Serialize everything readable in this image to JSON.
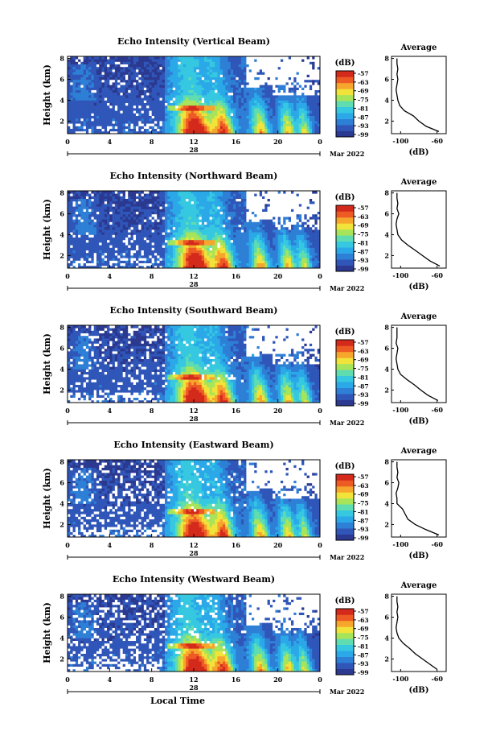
{
  "common": {
    "time_ticks": [
      "0",
      "4",
      "8",
      "12",
      "16",
      "20",
      "0"
    ],
    "date_day": "28",
    "date_month": "Mar 2022",
    "height_ticks": [
      "2",
      "4",
      "6",
      "8"
    ],
    "ylabel": "Height (km)",
    "xlabel": "Local Time",
    "cb_unit": "(dB)",
    "cb_ticks": [
      "-57",
      "-63",
      "-69",
      "-75",
      "-81",
      "-87",
      "-93",
      "-99"
    ],
    "avg_title": "Average",
    "avg_xticks": [
      "-100",
      "-60"
    ],
    "avg_xlabel": "(dB)",
    "avg_yticks": [
      "2",
      "4",
      "6",
      "8"
    ]
  },
  "colors": {
    "scale": [
      "#2b3990",
      "#2f56b8",
      "#2e7fd6",
      "#2aa8e8",
      "#36c8e0",
      "#5fdcb0",
      "#a8e45a",
      "#f2e33a",
      "#f6a52d",
      "#ee5a24",
      "#d42a1c"
    ],
    "background_gap": "#ffffff"
  },
  "chart_data": [
    {
      "type": "heatmap",
      "title": "Echo Intensity (Vertical Beam)",
      "x_range_hours": [
        0,
        24
      ],
      "y_range_km": [
        0.8,
        8.2
      ],
      "z_range_db": [
        -99,
        -57
      ],
      "average_profile": {
        "x_range_db": [
          -110,
          -50
        ],
        "height_km": [
          1,
          1.5,
          2,
          2.5,
          3,
          3.5,
          4,
          4.5,
          5,
          5.5,
          6,
          6.5,
          7,
          7.5,
          8
        ],
        "db": [
          -58,
          -72,
          -80,
          -86,
          -96,
          -101,
          -103,
          -104,
          -105,
          -104,
          -103,
          -104,
          -103,
          -104,
          -104
        ]
      }
    },
    {
      "type": "heatmap",
      "title": "Echo Intensity (Northward Beam)",
      "x_range_hours": [
        0,
        24
      ],
      "y_range_km": [
        0.8,
        8.2
      ],
      "z_range_db": [
        -99,
        -57
      ],
      "average_profile": {
        "x_range_db": [
          -110,
          -50
        ],
        "height_km": [
          1,
          1.5,
          2,
          2.5,
          3,
          3.5,
          4,
          4.5,
          5,
          5.5,
          6,
          6.5,
          7,
          7.5,
          8
        ],
        "db": [
          -57,
          -68,
          -76,
          -84,
          -92,
          -99,
          -103,
          -104,
          -105,
          -104,
          -102,
          -104,
          -103,
          -104,
          -104
        ]
      }
    },
    {
      "type": "heatmap",
      "title": "Echo Intensity (Southward Beam)",
      "x_range_hours": [
        0,
        24
      ],
      "y_range_km": [
        0.8,
        8.2
      ],
      "z_range_db": [
        -99,
        -57
      ],
      "average_profile": {
        "x_range_db": [
          -110,
          -50
        ],
        "height_km": [
          1,
          1.5,
          2,
          2.5,
          3,
          3.5,
          4,
          4.5,
          5,
          5.5,
          6,
          6.5,
          7,
          7.5,
          8
        ],
        "db": [
          -59,
          -70,
          -78,
          -85,
          -93,
          -100,
          -103,
          -104,
          -105,
          -104,
          -103,
          -105,
          -104,
          -104,
          -104
        ]
      }
    },
    {
      "type": "heatmap",
      "title": "Echo Intensity (Eastward Beam)",
      "x_range_hours": [
        0,
        24
      ],
      "y_range_km": [
        0.8,
        8.2
      ],
      "z_range_db": [
        -99,
        -57
      ],
      "average_profile": {
        "x_range_db": [
          -110,
          -50
        ],
        "height_km": [
          1,
          1.5,
          2,
          2.5,
          3,
          3.5,
          4,
          4.5,
          5,
          5.5,
          6,
          6.5,
          7,
          7.5,
          8
        ],
        "db": [
          -58,
          -72,
          -84,
          -92,
          -95,
          -98,
          -104,
          -104,
          -105,
          -103,
          -102,
          -104,
          -103,
          -104,
          -104
        ]
      }
    },
    {
      "type": "heatmap",
      "title": "Echo Intensity (Westward Beam)",
      "x_range_hours": [
        0,
        24
      ],
      "y_range_km": [
        0.8,
        8.2
      ],
      "z_range_db": [
        -99,
        -57
      ],
      "average_profile": {
        "x_range_db": [
          -110,
          -50
        ],
        "height_km": [
          1,
          1.5,
          2,
          2.5,
          3,
          3.5,
          4,
          4.5,
          5,
          5.5,
          6,
          6.5,
          7,
          7.5,
          8
        ],
        "db": [
          -60,
          -68,
          -76,
          -84,
          -90,
          -97,
          -102,
          -104,
          -105,
          -104,
          -103,
          -104,
          -103,
          -104,
          -104
        ]
      }
    }
  ]
}
